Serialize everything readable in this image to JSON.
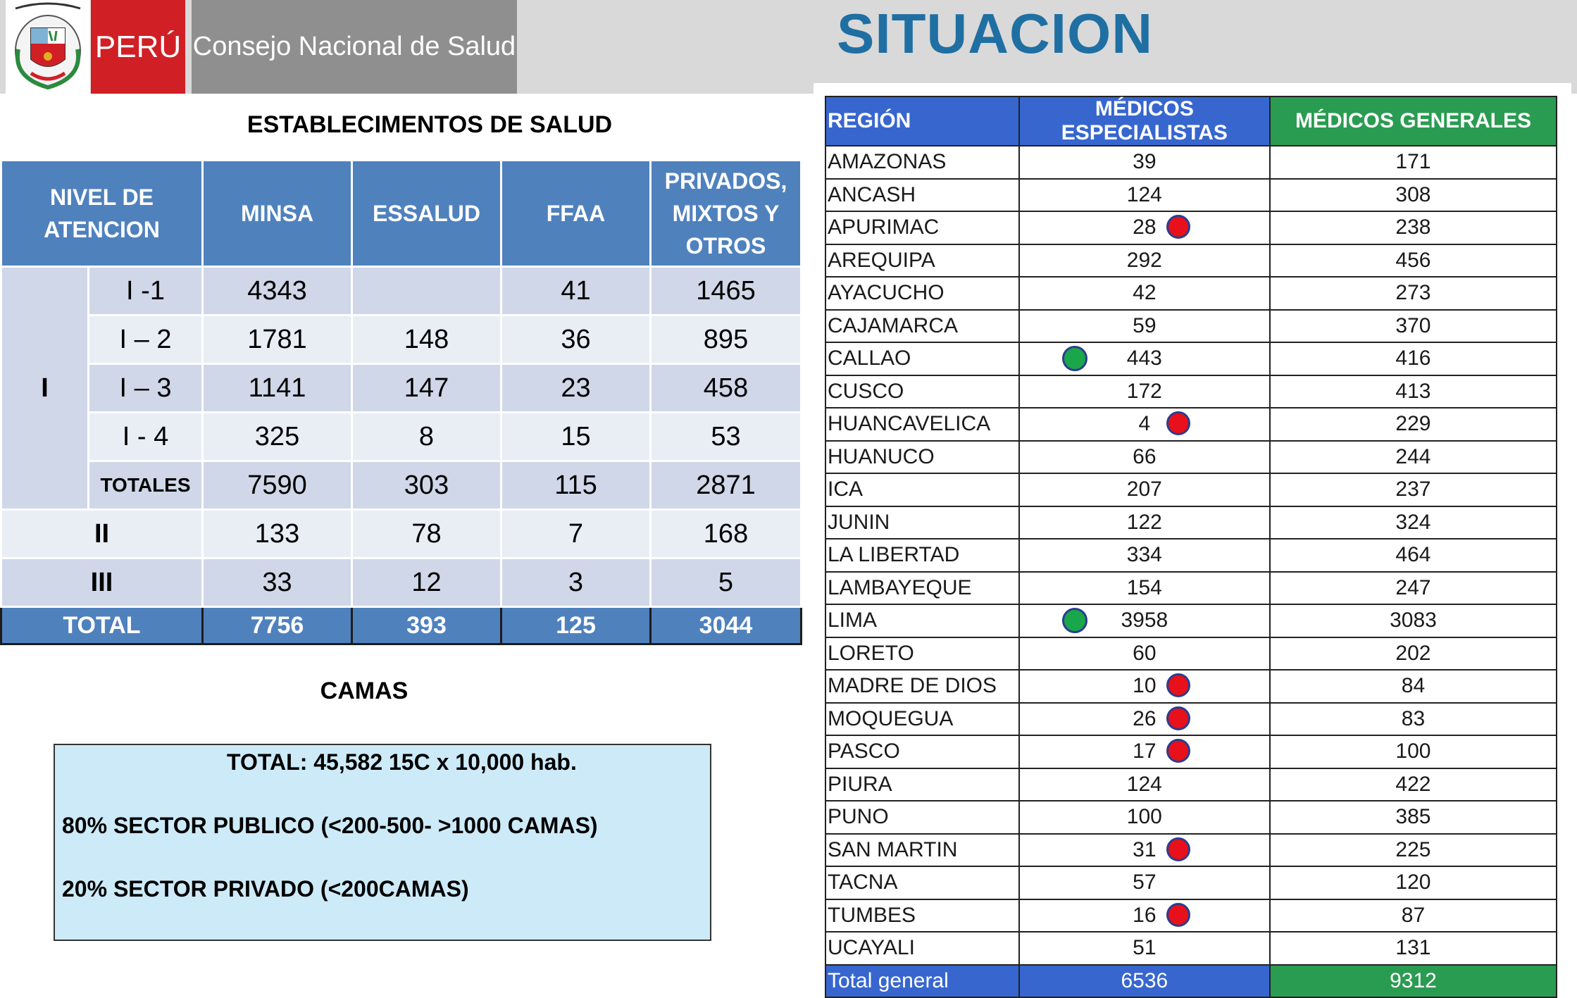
{
  "header": {
    "peru_label": "PERÚ",
    "consejo_label": "Consejo Nacional de Salud",
    "slide_title": "SITUACION"
  },
  "establecimientos": {
    "title": "ESTABLECIMENTOS DE SALUD",
    "headers": [
      "NIVEL DE ATENCION",
      "MINSA",
      "ESSALUD",
      "FFAA",
      "PRIVADOS, MIXTOS Y OTROS"
    ],
    "group_label": "I",
    "sub_rows": [
      {
        "label": "I -1",
        "minsa": "4343",
        "essalud": "",
        "ffaa": "41",
        "privados": "1465"
      },
      {
        "label": "I – 2",
        "minsa": "1781",
        "essalud": "148",
        "ffaa": "36",
        "privados": "895"
      },
      {
        "label": "I – 3",
        "minsa": "1141",
        "essalud": "147",
        "ffaa": "23",
        "privados": "458"
      },
      {
        "label": "I - 4",
        "minsa": "325",
        "essalud": "8",
        "ffaa": "15",
        "privados": "53"
      },
      {
        "label": "TOTALES",
        "minsa": "7590",
        "essalud": "303",
        "ffaa": "115",
        "privados": "2871"
      }
    ],
    "level_rows": [
      {
        "label": "II",
        "minsa": "133",
        "essalud": "78",
        "ffaa": "7",
        "privados": "168"
      },
      {
        "label": "III",
        "minsa": "33",
        "essalud": "12",
        "ffaa": "3",
        "privados": "5"
      }
    ],
    "total": {
      "label": "TOTAL",
      "minsa": "7756",
      "essalud": "393",
      "ffaa": "125",
      "privados": "3044"
    }
  },
  "camas": {
    "title": "CAMAS",
    "total_line": "TOTAL: 45,582     15C x 10,000 hab.",
    "publico_line": "80% SECTOR PUBLICO (<200-500- >1000 CAMAS)",
    "privado_line": "20% SECTOR PRIVADO (<200CAMAS)"
  },
  "medicos": {
    "headers": [
      "REGIÓN",
      "MÉDICOS ESPECIALISTAS",
      "MÉDICOS GENERALES"
    ],
    "rows": [
      {
        "region": "AMAZONAS",
        "esp": "39",
        "gen": "171",
        "marker": ""
      },
      {
        "region": "ANCASH",
        "esp": "124",
        "gen": "308",
        "marker": ""
      },
      {
        "region": "APURIMAC",
        "esp": "28",
        "gen": "238",
        "marker": "red"
      },
      {
        "region": "AREQUIPA",
        "esp": "292",
        "gen": "456",
        "marker": ""
      },
      {
        "region": "AYACUCHO",
        "esp": "42",
        "gen": "273",
        "marker": ""
      },
      {
        "region": "CAJAMARCA",
        "esp": "59",
        "gen": "370",
        "marker": ""
      },
      {
        "region": "CALLAO",
        "esp": "443",
        "gen": "416",
        "marker": "green"
      },
      {
        "region": "CUSCO",
        "esp": "172",
        "gen": "413",
        "marker": ""
      },
      {
        "region": "HUANCAVELICA",
        "esp": "4",
        "gen": "229",
        "marker": "red"
      },
      {
        "region": "HUANUCO",
        "esp": "66",
        "gen": "244",
        "marker": ""
      },
      {
        "region": "ICA",
        "esp": "207",
        "gen": "237",
        "marker": ""
      },
      {
        "region": "JUNIN",
        "esp": "122",
        "gen": "324",
        "marker": ""
      },
      {
        "region": "LA LIBERTAD",
        "esp": "334",
        "gen": "464",
        "marker": ""
      },
      {
        "region": "LAMBAYEQUE",
        "esp": "154",
        "gen": "247",
        "marker": ""
      },
      {
        "region": "LIMA",
        "esp": "3958",
        "gen": "3083",
        "marker": "green"
      },
      {
        "region": "LORETO",
        "esp": "60",
        "gen": "202",
        "marker": ""
      },
      {
        "region": "MADRE DE DIOS",
        "esp": "10",
        "gen": "84",
        "marker": "red"
      },
      {
        "region": "MOQUEGUA",
        "esp": "26",
        "gen": "83",
        "marker": "red"
      },
      {
        "region": "PASCO",
        "esp": "17",
        "gen": "100",
        "marker": "red"
      },
      {
        "region": "PIURA",
        "esp": "124",
        "gen": "422",
        "marker": ""
      },
      {
        "region": "PUNO",
        "esp": "100",
        "gen": "385",
        "marker": ""
      },
      {
        "region": "SAN MARTIN",
        "esp": "31",
        "gen": "225",
        "marker": "red"
      },
      {
        "region": "TACNA",
        "esp": "57",
        "gen": "120",
        "marker": ""
      },
      {
        "region": "TUMBES",
        "esp": "16",
        "gen": "87",
        "marker": "red"
      },
      {
        "region": "UCAYALI",
        "esp": "51",
        "gen": "131",
        "marker": ""
      }
    ],
    "total": {
      "region": "Total general",
      "esp": "6536",
      "gen": "9312"
    }
  },
  "colors": {
    "title_blue": "#1f6fa3",
    "table_header_blue": "#4f81bd",
    "medicos_blue": "#3766cf",
    "medicos_green": "#2a9c52",
    "marker_red": "#e8101a",
    "marker_green": "#1aa64a",
    "peru_red": "#d11f26"
  }
}
